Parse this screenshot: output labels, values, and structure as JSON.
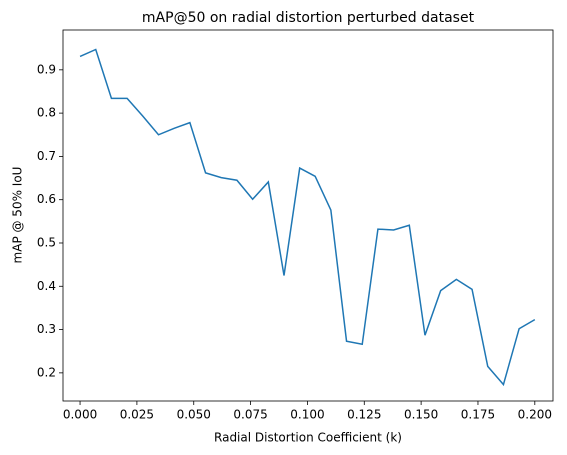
{
  "chart_data": {
    "type": "line",
    "title": "mAP@50 on radial distortion perturbed dataset",
    "x_label": "Radial Distortion Coefficient (k)",
    "y_label": "mAP @ 50% IoU",
    "x": [
      0.0,
      0.0069,
      0.0138,
      0.0207,
      0.0276,
      0.0345,
      0.0414,
      0.0483,
      0.0552,
      0.0621,
      0.069,
      0.0759,
      0.0828,
      0.0897,
      0.0966,
      0.1034,
      0.1103,
      0.1172,
      0.1241,
      0.131,
      0.1379,
      0.1448,
      0.1517,
      0.1586,
      0.1655,
      0.1724,
      0.1793,
      0.1862,
      0.1931,
      0.2
    ],
    "series": [
      {
        "name": "mAP@50",
        "color": "#1f77b4",
        "values": [
          0.931,
          0.947,
          0.834,
          0.834,
          0.793,
          0.75,
          0.765,
          0.778,
          0.662,
          0.651,
          0.645,
          0.601,
          0.641,
          0.425,
          0.673,
          0.654,
          0.576,
          0.273,
          0.266,
          0.532,
          0.53,
          0.541,
          0.287,
          0.39,
          0.416,
          0.393,
          0.215,
          0.173,
          0.302,
          0.323
        ]
      }
    ],
    "xlim": [
      -0.0075,
      0.208
    ],
    "ylim": [
      0.135,
      0.992
    ],
    "xticks": [
      {
        "value": 0.0,
        "label": "0.000"
      },
      {
        "value": 0.025,
        "label": "0.025"
      },
      {
        "value": 0.05,
        "label": "0.050"
      },
      {
        "value": 0.075,
        "label": "0.075"
      },
      {
        "value": 0.1,
        "label": "0.100"
      },
      {
        "value": 0.125,
        "label": "0.125"
      },
      {
        "value": 0.15,
        "label": "0.150"
      },
      {
        "value": 0.175,
        "label": "0.175"
      },
      {
        "value": 0.2,
        "label": "0.200"
      }
    ],
    "yticks": [
      0.2,
      0.3,
      0.4,
      0.5,
      0.6,
      0.7,
      0.8,
      0.9
    ],
    "grid": false
  }
}
